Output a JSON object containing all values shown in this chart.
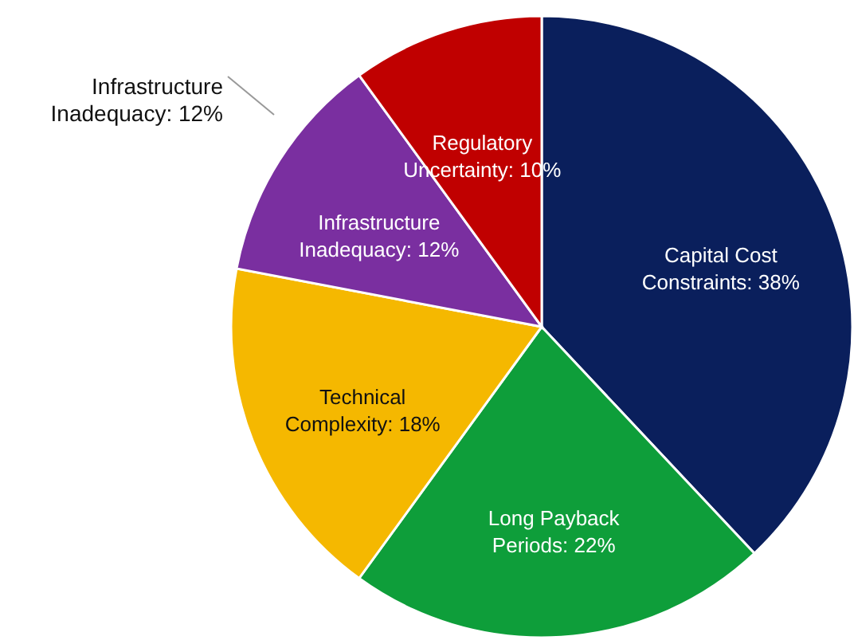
{
  "chart_data": {
    "type": "pie",
    "categories": [
      "Capital Cost Constraints",
      "Long Payback Periods",
      "Technical Complexity",
      "Infrastructure Inadequacy",
      "Regulatory Uncertainty"
    ],
    "value_labels": [
      "38%",
      "22%",
      "18%",
      "12%",
      "10%"
    ],
    "values": [
      38,
      22,
      18,
      12,
      10
    ],
    "colors": [
      "#0a1f5c",
      "#0e9e3a",
      "#f5b800",
      "#7a2fa0",
      "#c00000"
    ],
    "annotations": [
      "Infrastructure Inadequacy: 12%"
    ]
  }
}
